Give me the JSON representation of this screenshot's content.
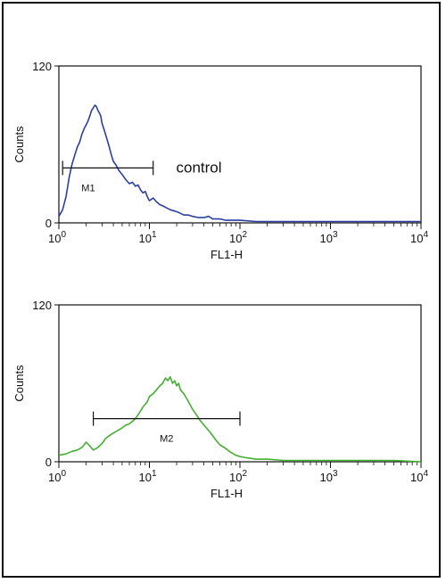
{
  "chart_data": [
    {
      "type": "line",
      "ylabel": "Counts",
      "xlabel": "FL1-H",
      "x_scale": "log",
      "xlim": [
        1,
        10000
      ],
      "ylim": [
        0,
        120
      ],
      "y_ticks": [
        "0",
        "120"
      ],
      "x_tick_bases": [
        "10",
        "10",
        "10",
        "10",
        "10"
      ],
      "x_tick_exps": [
        "0",
        "1",
        "2",
        "3",
        "4"
      ],
      "annotation": "control",
      "color": "#2b3fa0",
      "marker": {
        "label": "M1",
        "x_start": 1.1,
        "x_end": 11,
        "y": 42
      },
      "series": [
        {
          "x": [
            1,
            1.1,
            1.2,
            1.3,
            1.4,
            1.5,
            1.6,
            1.7,
            1.8,
            1.9,
            2.0,
            2.1,
            2.2,
            2.3,
            2.4,
            2.5,
            2.6,
            2.7,
            2.8,
            2.9,
            3.0,
            3.2,
            3.4,
            3.6,
            3.8,
            4.0,
            4.3,
            4.6,
            5.0,
            5.5,
            6.0,
            6.5,
            7.0,
            7.5,
            8.0,
            8.5,
            9.0,
            9.5,
            10,
            11,
            12,
            13,
            14,
            15,
            17,
            19,
            21,
            24,
            27,
            30,
            35,
            40,
            45,
            50,
            60,
            70,
            80,
            100,
            150,
            200,
            300,
            500,
            1000,
            2000,
            5000,
            10000
          ],
          "y": [
            5,
            10,
            20,
            35,
            45,
            52,
            58,
            62,
            68,
            72,
            75,
            78,
            82,
            86,
            88,
            90,
            89,
            86,
            84,
            82,
            76,
            70,
            64,
            58,
            52,
            47,
            44,
            40,
            37,
            33,
            30,
            31,
            28,
            29,
            25,
            23,
            24,
            20,
            17,
            19,
            16,
            14,
            13,
            12,
            10,
            9,
            8,
            6,
            6,
            5,
            4,
            4,
            5,
            3,
            3,
            2,
            2,
            2,
            1,
            1,
            1,
            1,
            1,
            1,
            1,
            1
          ]
        }
      ]
    },
    {
      "type": "line",
      "ylabel": "Counts",
      "xlabel": "FL1-H",
      "x_scale": "log",
      "xlim": [
        1,
        10000
      ],
      "ylim": [
        0,
        120
      ],
      "y_ticks": [
        "0",
        "120"
      ],
      "x_tick_bases": [
        "10",
        "10",
        "10",
        "10",
        "10"
      ],
      "x_tick_exps": [
        "0",
        "1",
        "2",
        "3",
        "4"
      ],
      "color": "#44b030",
      "marker": {
        "label": "M2",
        "x_start": 2.4,
        "x_end": 100,
        "y": 33
      },
      "series": [
        {
          "x": [
            1,
            1.2,
            1.4,
            1.6,
            1.8,
            2.0,
            2.2,
            2.4,
            2.7,
            3.0,
            3.3,
            3.6,
            4.0,
            4.5,
            5.0,
            5.5,
            6.0,
            6.5,
            7.0,
            7.5,
            8.0,
            8.5,
            9.0,
            9.5,
            10,
            11,
            12,
            13,
            14,
            15,
            16,
            17,
            18,
            19,
            20,
            21,
            22,
            24,
            26,
            28,
            30,
            33,
            36,
            40,
            45,
            50,
            55,
            60,
            70,
            80,
            90,
            100,
            120,
            150,
            200,
            300,
            500,
            1000,
            2000,
            5000,
            10000
          ],
          "y": [
            5,
            6,
            8,
            9,
            11,
            15,
            12,
            9,
            11,
            14,
            18,
            20,
            22,
            24,
            26,
            28,
            29,
            31,
            33,
            36,
            39,
            42,
            44,
            46,
            50,
            52,
            55,
            58,
            60,
            64,
            62,
            65,
            60,
            62,
            58,
            60,
            55,
            52,
            48,
            44,
            40,
            36,
            32,
            28,
            24,
            20,
            16,
            13,
            10,
            7,
            5,
            4,
            3,
            2,
            2,
            1,
            1,
            1,
            1,
            1,
            0
          ]
        }
      ]
    }
  ]
}
